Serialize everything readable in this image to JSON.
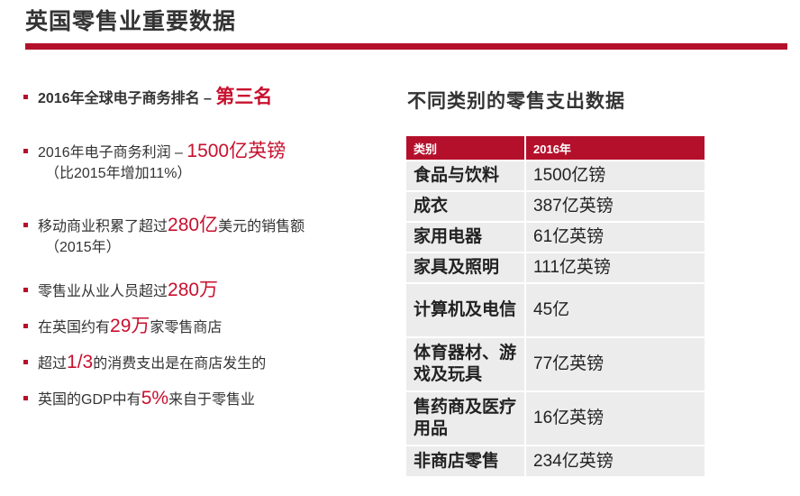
{
  "page": {
    "title": "英国零售业重要数据",
    "accent_color": "#b5102b"
  },
  "bullets": [
    {
      "pre": "2016年全球电子商务排名 – ",
      "highlight": "第三名",
      "post": "",
      "sub": ""
    },
    {
      "pre": "2016年电子商务利润 – ",
      "highlight": "1500亿英镑",
      "post": "",
      "sub": "（比2015年增加11%）"
    },
    {
      "pre": "移动商业积累了超过",
      "highlight": "280亿",
      "post": "美元的销售额",
      "sub": "（2015年）"
    },
    {
      "pre": "零售业从业人员超过",
      "highlight": "280万",
      "post": "",
      "sub": ""
    },
    {
      "pre": "在英国约有",
      "highlight": "29万",
      "post": "家零售商店",
      "sub": ""
    },
    {
      "pre": "超过",
      "highlight": "1/3",
      "post": "的消费支出是在商店发生的",
      "sub": ""
    },
    {
      "pre": "英国的GDP中有",
      "highlight": "5%",
      "post": "来自于零售业",
      "sub": ""
    }
  ],
  "table": {
    "title": "不同类别的零售支出数据",
    "headers": [
      "类别",
      "2016年"
    ],
    "rows": [
      {
        "category": "食品与饮料",
        "value": "1500亿镑"
      },
      {
        "category": "成衣",
        "value": "387亿英镑"
      },
      {
        "category": "家用电器",
        "value": "61亿英镑"
      },
      {
        "category": "家具及照明",
        "value": "111亿英镑"
      },
      {
        "category": "计算机及电信",
        "value": "45亿"
      },
      {
        "category": "体育器材、游戏及玩具",
        "value": "77亿英镑"
      },
      {
        "category": "售药商及医疗用品",
        "value": "16亿英镑"
      },
      {
        "category": "非商店零售",
        "value": "234亿英镑"
      }
    ]
  }
}
